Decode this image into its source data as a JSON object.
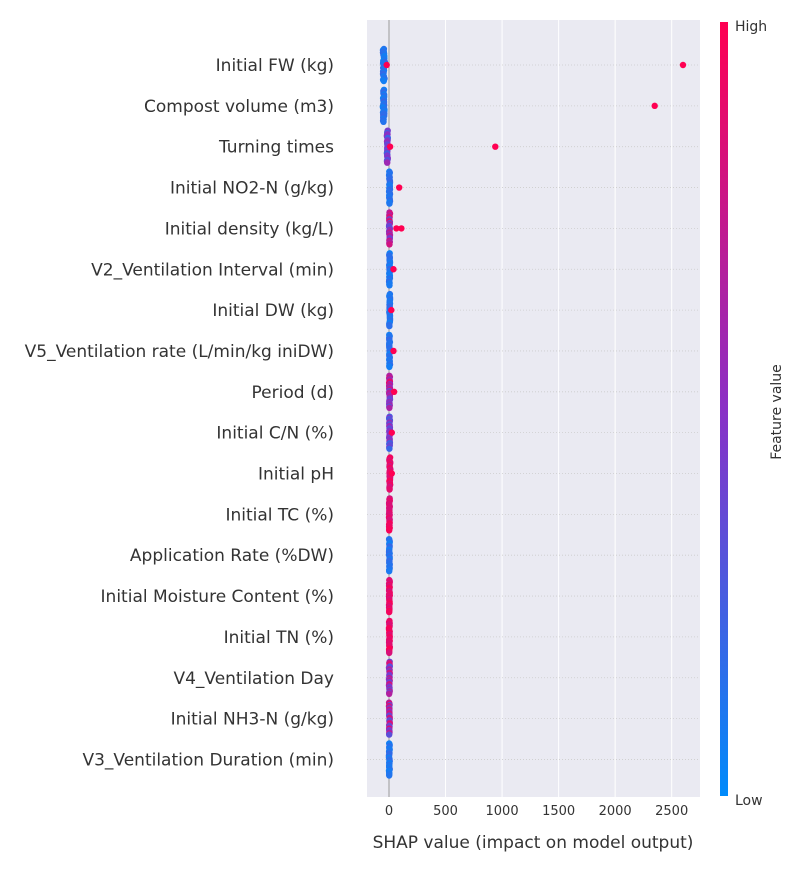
{
  "chart_data": {
    "type": "scatter",
    "xlabel": "SHAP value (impact on model output)",
    "xlim": [
      -200,
      2720
    ],
    "xticks": [
      0,
      500,
      1000,
      1500,
      2000,
      2500
    ],
    "grid": true,
    "colorbar": {
      "label": "Feature value",
      "high": "High",
      "low": "Low",
      "low_color": "#008bfb",
      "high_color": "#ff0052"
    },
    "features": [
      {
        "name": "Initial FW (kg)",
        "min": -70,
        "max": -20,
        "outliers": [
          {
            "x": -20,
            "v": 1.0
          },
          {
            "x": 2600,
            "v": 1.0
          }
        ],
        "hue": "low"
      },
      {
        "name": "Compost volume (m3)",
        "min": -65,
        "max": -30,
        "outliers": [
          {
            "x": 2350,
            "v": 1.0
          }
        ],
        "hue": "low"
      },
      {
        "name": "Turning times",
        "min": -25,
        "max": -5,
        "outliers": [
          {
            "x": 10,
            "v": 1.0
          },
          {
            "x": 940,
            "v": 1.0
          }
        ],
        "hue": "mixed-low"
      },
      {
        "name": "Initial NO2-N (g/kg)",
        "min": -5,
        "max": 15,
        "outliers": [
          {
            "x": 90,
            "v": 1.0
          }
        ],
        "hue": "low"
      },
      {
        "name": "Initial density (kg/L)",
        "min": -5,
        "max": 15,
        "outliers": [
          {
            "x": 65,
            "v": 1.0
          },
          {
            "x": 110,
            "v": 1.0
          }
        ],
        "hue": "mixed"
      },
      {
        "name": "V2_Ventilation Interval (min)",
        "min": -5,
        "max": 15,
        "outliers": [
          {
            "x": 40,
            "v": 1.0
          }
        ],
        "hue": "low"
      },
      {
        "name": "Initial DW (kg)",
        "min": -5,
        "max": 15,
        "outliers": [
          {
            "x": 20,
            "v": 1.0
          }
        ],
        "hue": "low"
      },
      {
        "name": "V5_Ventilation rate (L/min/kg iniDW)",
        "min": -5,
        "max": 15,
        "outliers": [
          {
            "x": 40,
            "v": 1.0
          }
        ],
        "hue": "low"
      },
      {
        "name": "Period (d)",
        "min": -5,
        "max": 15,
        "outliers": [
          {
            "x": 45,
            "v": 1.0
          }
        ],
        "hue": "mixed"
      },
      {
        "name": "Initial C/N (%)",
        "min": -5,
        "max": 15,
        "outliers": [
          {
            "x": 25,
            "v": 1.0
          }
        ],
        "hue": "mixed-low"
      },
      {
        "name": "Initial pH",
        "min": -5,
        "max": 20,
        "outliers": [
          {
            "x": 25,
            "v": 1.0
          }
        ],
        "hue": "high"
      },
      {
        "name": "Initial TC (%)",
        "min": -5,
        "max": 12,
        "outliers": [],
        "hue": "high"
      },
      {
        "name": "Application Rate (%DW)",
        "min": -5,
        "max": 12,
        "outliers": [],
        "hue": "low"
      },
      {
        "name": "Initial Moisture Content (%)",
        "min": -5,
        "max": 12,
        "outliers": [],
        "hue": "high"
      },
      {
        "name": "Initial TN (%)",
        "min": -5,
        "max": 12,
        "outliers": [],
        "hue": "high"
      },
      {
        "name": "V4_Ventilation Day",
        "min": -5,
        "max": 12,
        "outliers": [],
        "hue": "mixed"
      },
      {
        "name": "Initial NH3-N (g/kg)",
        "min": -5,
        "max": 12,
        "outliers": [],
        "hue": "mixed"
      },
      {
        "name": "V3_Ventilation Duration (min)",
        "min": -5,
        "max": 12,
        "outliers": [],
        "hue": "low"
      }
    ]
  }
}
